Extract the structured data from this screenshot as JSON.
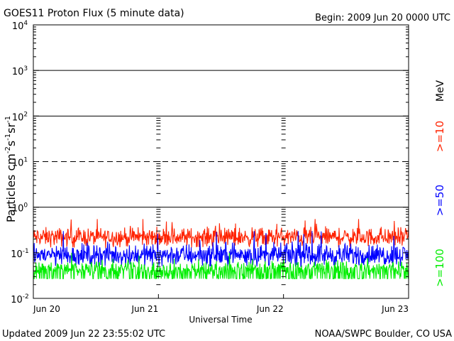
{
  "header": {
    "title": "GOES11 Proton Flux (5 minute data)",
    "begin": "Begin: 2009 Jun 20 0000 UTC"
  },
  "footer": {
    "updated": "Updated 2009 Jun 22 23:55:02 UTC",
    "credit": "NOAA/SWPC Boulder, CO USA"
  },
  "colors": {
    "ge10": "#ff2200",
    "ge50": "#0000ff",
    "ge100": "#00ee00",
    "background": "#ffffff",
    "axes": "#000000"
  },
  "chart_data": {
    "type": "line",
    "title": "GOES11 Proton Flux (5 minute data)",
    "xlabel": "Universal Time",
    "ylabel_parts": [
      "Particles cm",
      "-2",
      "s",
      "-1",
      "sr",
      "-1"
    ],
    "y_scale": "log",
    "ylim": [
      0.01,
      10000
    ],
    "y_ticks": [
      {
        "value": 0.01,
        "base": "10",
        "exp": "-2"
      },
      {
        "value": 0.1,
        "base": "10",
        "exp": "-1"
      },
      {
        "value": 1,
        "base": "10",
        "exp": "0"
      },
      {
        "value": 10,
        "base": "10",
        "exp": "1"
      },
      {
        "value": 100,
        "base": "10",
        "exp": "2"
      },
      {
        "value": 1000,
        "base": "10",
        "exp": "3"
      },
      {
        "value": 10000,
        "base": "10",
        "exp": "4"
      }
    ],
    "x_ticks": [
      "Jun 20",
      "Jun 21",
      "Jun 22",
      "Jun 23"
    ],
    "x_range": [
      "2009-06-20 00:00",
      "2009-06-23 00:00"
    ],
    "threshold_lines": [
      {
        "value": 1,
        "style": "solid"
      },
      {
        "value": 10,
        "style": "dashed"
      },
      {
        "value": 100,
        "style": "solid"
      },
      {
        "value": 1000,
        "style": "solid"
      }
    ],
    "legend_position": "right",
    "legend_unit": "MeV",
    "series": [
      {
        "name": ">=10",
        "color": "#ff2200",
        "mean": 0.22,
        "min": 0.12,
        "max": 0.55
      },
      {
        "name": ">=50",
        "color": "#0000ff",
        "mean": 0.09,
        "min": 0.05,
        "max": 0.3
      },
      {
        "name": ">=100",
        "color": "#00ee00",
        "mean": 0.045,
        "min": 0.027,
        "max": 0.1
      }
    ]
  }
}
